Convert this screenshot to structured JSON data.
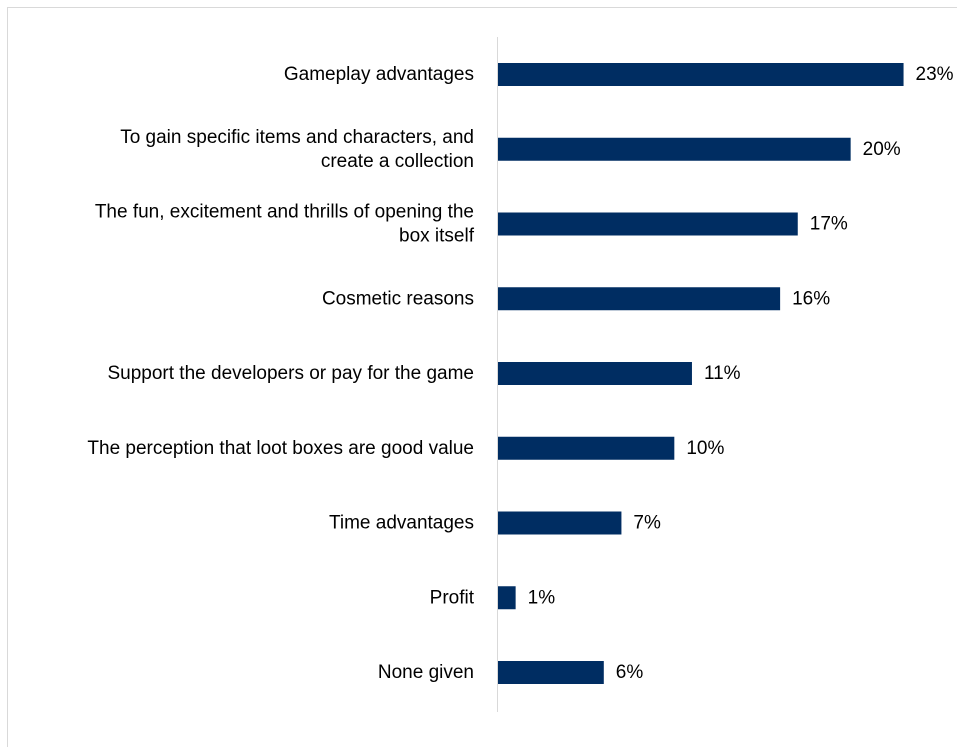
{
  "chart_data": {
    "type": "bar",
    "orientation": "horizontal",
    "categories": [
      "Gameplay advantages",
      "To gain specific items and characters, and create a collection",
      "The fun, excitement and thrills of opening the box itself",
      "Cosmetic reasons",
      "Support the developers or pay for the game",
      "The perception that loot boxes are good value",
      "Time advantages",
      "Profit",
      "None given"
    ],
    "category_lines": [
      [
        "Gameplay advantages"
      ],
      [
        "To gain specific items and characters, and",
        "create a collection"
      ],
      [
        "The fun, excitement and thrills of opening the",
        "box itself"
      ],
      [
        "Cosmetic reasons"
      ],
      [
        "Support the developers or pay for the game"
      ],
      [
        "The perception that loot boxes are good value"
      ],
      [
        "Time advantages"
      ],
      [
        "Profit"
      ],
      [
        "None given"
      ]
    ],
    "values": [
      23,
      20,
      17,
      16,
      11,
      10,
      7,
      1,
      6
    ],
    "value_labels": [
      "23%",
      "20%",
      "17%",
      "16%",
      "11%",
      "10%",
      "7%",
      "1%",
      "6%"
    ],
    "unit": "%",
    "xlim": [
      0,
      24.5
    ],
    "grid": false,
    "legend": "none",
    "bar_color": "#002D62"
  }
}
